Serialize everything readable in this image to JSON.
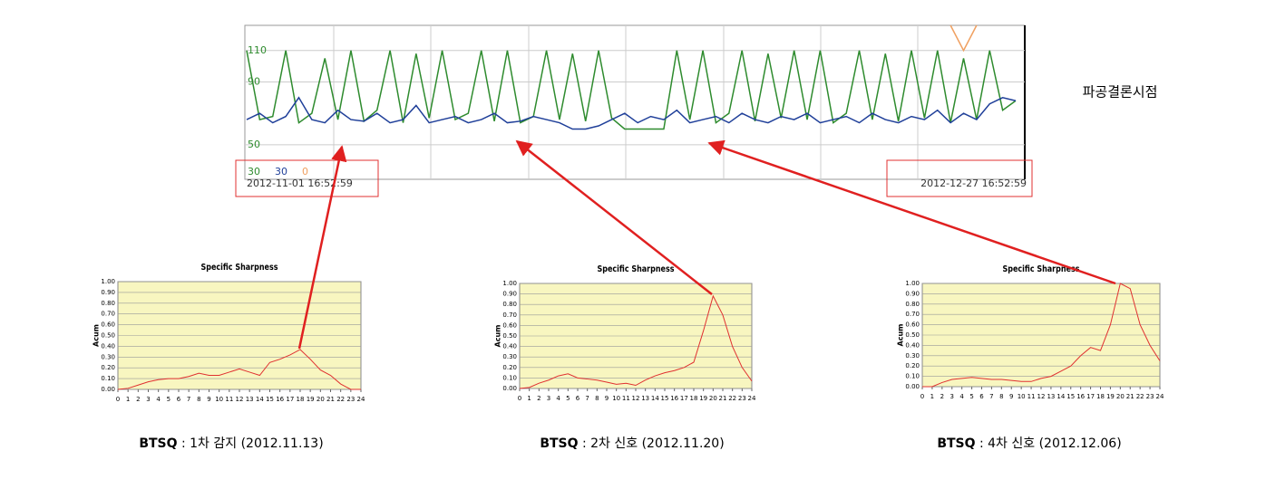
{
  "annotation": "파공결론시점",
  "chart_data": [
    {
      "type": "line",
      "ylim": [
        28,
        126
      ],
      "yticks": [
        50,
        90,
        110
      ],
      "grid": true,
      "x_labels": [
        "2012-11-01 16:52:59",
        "2012-12-27 16:52:59"
      ],
      "series": [
        {
          "name": "30",
          "color": "#2e8b2e",
          "values": [
            110,
            66,
            68,
            110,
            64,
            70,
            105,
            66,
            110,
            65,
            72,
            110,
            64,
            108,
            67,
            110,
            66,
            70,
            110,
            65,
            110,
            64,
            68,
            110,
            66,
            108,
            65,
            110,
            67,
            60,
            60,
            60,
            60,
            110,
            66,
            110,
            64,
            70,
            110,
            65,
            108,
            67,
            110,
            66,
            110,
            64,
            70,
            110,
            66,
            108,
            65,
            110,
            67,
            110,
            64,
            105,
            66,
            110,
            72,
            78
          ]
        },
        {
          "name": "30",
          "color": "#1f3f99",
          "values": [
            66,
            70,
            64,
            68,
            80,
            66,
            64,
            72,
            66,
            65,
            70,
            64,
            66,
            75,
            64,
            66,
            68,
            64,
            66,
            70,
            64,
            65,
            68,
            66,
            64,
            60,
            60,
            62,
            66,
            70,
            64,
            68,
            66,
            72,
            64,
            66,
            68,
            64,
            70,
            66,
            64,
            68,
            66,
            70,
            64,
            66,
            68,
            64,
            70,
            66,
            64,
            68,
            66,
            72,
            64,
            70,
            66,
            76,
            80,
            78
          ]
        },
        {
          "name": "0",
          "color": "#f0a060",
          "values": [
            null,
            null,
            null,
            null,
            null,
            null,
            null,
            null,
            null,
            null,
            null,
            null,
            null,
            null,
            null,
            null,
            null,
            null,
            null,
            null,
            null,
            null,
            null,
            null,
            null,
            null,
            null,
            null,
            null,
            null,
            null,
            null,
            null,
            null,
            null,
            null,
            null,
            null,
            null,
            null,
            null,
            null,
            null,
            null,
            null,
            null,
            null,
            null,
            null,
            null,
            null,
            null,
            null,
            null,
            126,
            110,
            126,
            null,
            null,
            null
          ]
        }
      ]
    },
    {
      "type": "line",
      "title": "Specific Sharpness",
      "y_label": "Acum",
      "color": "#e03030",
      "ylim": [
        0,
        1
      ],
      "yticks": [
        {
          "value": 0,
          "label": "0.00"
        },
        {
          "value": 0.1,
          "label": "0.10"
        },
        {
          "value": 0.2,
          "label": "0.20"
        },
        {
          "value": 0.3,
          "label": "0.30"
        },
        {
          "value": 0.4,
          "label": "0.40"
        },
        {
          "value": 0.5,
          "label": "0.50"
        },
        {
          "value": 0.6,
          "label": "0.60"
        },
        {
          "value": 0.7,
          "label": "0.70"
        },
        {
          "value": 0.8,
          "label": "0.80"
        },
        {
          "value": 0.9,
          "label": "0.90"
        },
        {
          "value": 1,
          "label": "1.00"
        }
      ],
      "xlim": [
        0,
        24
      ],
      "xticks": [
        0,
        1,
        2,
        3,
        4,
        5,
        6,
        7,
        8,
        9,
        10,
        11,
        12,
        13,
        14,
        15,
        16,
        17,
        18,
        19,
        20,
        21,
        22,
        23,
        24
      ],
      "x": [
        0,
        1,
        2,
        3,
        4,
        5,
        6,
        7,
        8,
        9,
        10,
        11,
        12,
        13,
        14,
        15,
        16,
        17,
        18,
        19,
        20,
        21,
        22,
        23,
        24
      ],
      "values": [
        0,
        0.01,
        0.04,
        0.07,
        0.09,
        0.1,
        0.1,
        0.12,
        0.15,
        0.13,
        0.13,
        0.16,
        0.19,
        0.16,
        0.13,
        0.25,
        0.28,
        0.32,
        0.37,
        0.28,
        0.18,
        0.13,
        0.05,
        0,
        0
      ],
      "caption_bold": "BTSQ",
      "caption": " : 1차 감지 (2012.11.13)"
    },
    {
      "type": "line",
      "title": "Specific Sharpness",
      "y_label": "Acum",
      "color": "#e03030",
      "ylim": [
        0,
        1
      ],
      "yticks": [
        {
          "value": 0,
          "label": "0.00"
        },
        {
          "value": 0.1,
          "label": "0.10"
        },
        {
          "value": 0.2,
          "label": "0.20"
        },
        {
          "value": 0.3,
          "label": "0.30"
        },
        {
          "value": 0.4,
          "label": "0.40"
        },
        {
          "value": 0.5,
          "label": "0.50"
        },
        {
          "value": 0.6,
          "label": "0.60"
        },
        {
          "value": 0.7,
          "label": "0.70"
        },
        {
          "value": 0.8,
          "label": "0.80"
        },
        {
          "value": 0.9,
          "label": "0.90"
        },
        {
          "value": 1,
          "label": "1.00"
        }
      ],
      "xlim": [
        0,
        24
      ],
      "xticks": [
        0,
        1,
        2,
        3,
        4,
        5,
        6,
        7,
        8,
        9,
        10,
        11,
        12,
        13,
        14,
        15,
        16,
        17,
        18,
        19,
        20,
        21,
        22,
        23,
        24
      ],
      "x": [
        0,
        1,
        2,
        3,
        4,
        5,
        6,
        7,
        8,
        9,
        10,
        11,
        12,
        13,
        14,
        15,
        16,
        17,
        18,
        19,
        20,
        21,
        22,
        23,
        24
      ],
      "values": [
        0,
        0.01,
        0.05,
        0.08,
        0.12,
        0.14,
        0.1,
        0.09,
        0.08,
        0.06,
        0.04,
        0.05,
        0.03,
        0.08,
        0.12,
        0.15,
        0.17,
        0.2,
        0.25,
        0.55,
        0.88,
        0.7,
        0.4,
        0.2,
        0.07
      ],
      "caption_bold": "BTSQ",
      "caption": " : 2차 신호 (2012.11.20)"
    },
    {
      "type": "line",
      "title": "Specific Sharpness",
      "y_label": "Acum",
      "color": "#e03030",
      "ylim": [
        0,
        1
      ],
      "yticks": [
        {
          "value": 0,
          "label": "0.00"
        },
        {
          "value": 0.1,
          "label": "0.10"
        },
        {
          "value": 0.2,
          "label": "0.20"
        },
        {
          "value": 0.3,
          "label": "0.30"
        },
        {
          "value": 0.4,
          "label": "0.40"
        },
        {
          "value": 0.5,
          "label": "0.50"
        },
        {
          "value": 0.6,
          "label": "0.60"
        },
        {
          "value": 0.7,
          "label": "0.70"
        },
        {
          "value": 0.8,
          "label": "0.80"
        },
        {
          "value": 0.9,
          "label": "0.90"
        },
        {
          "value": 1,
          "label": "1.00"
        }
      ],
      "xlim": [
        0,
        24
      ],
      "xticks": [
        0,
        1,
        2,
        3,
        4,
        5,
        6,
        7,
        8,
        9,
        10,
        11,
        12,
        13,
        14,
        15,
        16,
        17,
        18,
        19,
        20,
        21,
        22,
        23,
        24
      ],
      "x": [
        0,
        1,
        2,
        3,
        4,
        5,
        6,
        7,
        8,
        9,
        10,
        11,
        12,
        13,
        14,
        15,
        16,
        17,
        18,
        19,
        20,
        21,
        22,
        23,
        24
      ],
      "values": [
        0,
        0,
        0.04,
        0.07,
        0.08,
        0.09,
        0.08,
        0.07,
        0.07,
        0.06,
        0.05,
        0.05,
        0.08,
        0.1,
        0.15,
        0.2,
        0.3,
        0.38,
        0.35,
        0.6,
        1,
        0.95,
        0.6,
        0.4,
        0.25
      ],
      "caption_bold": "BTSQ",
      "caption": " : 4차 신호 (2012.12.06)"
    }
  ]
}
